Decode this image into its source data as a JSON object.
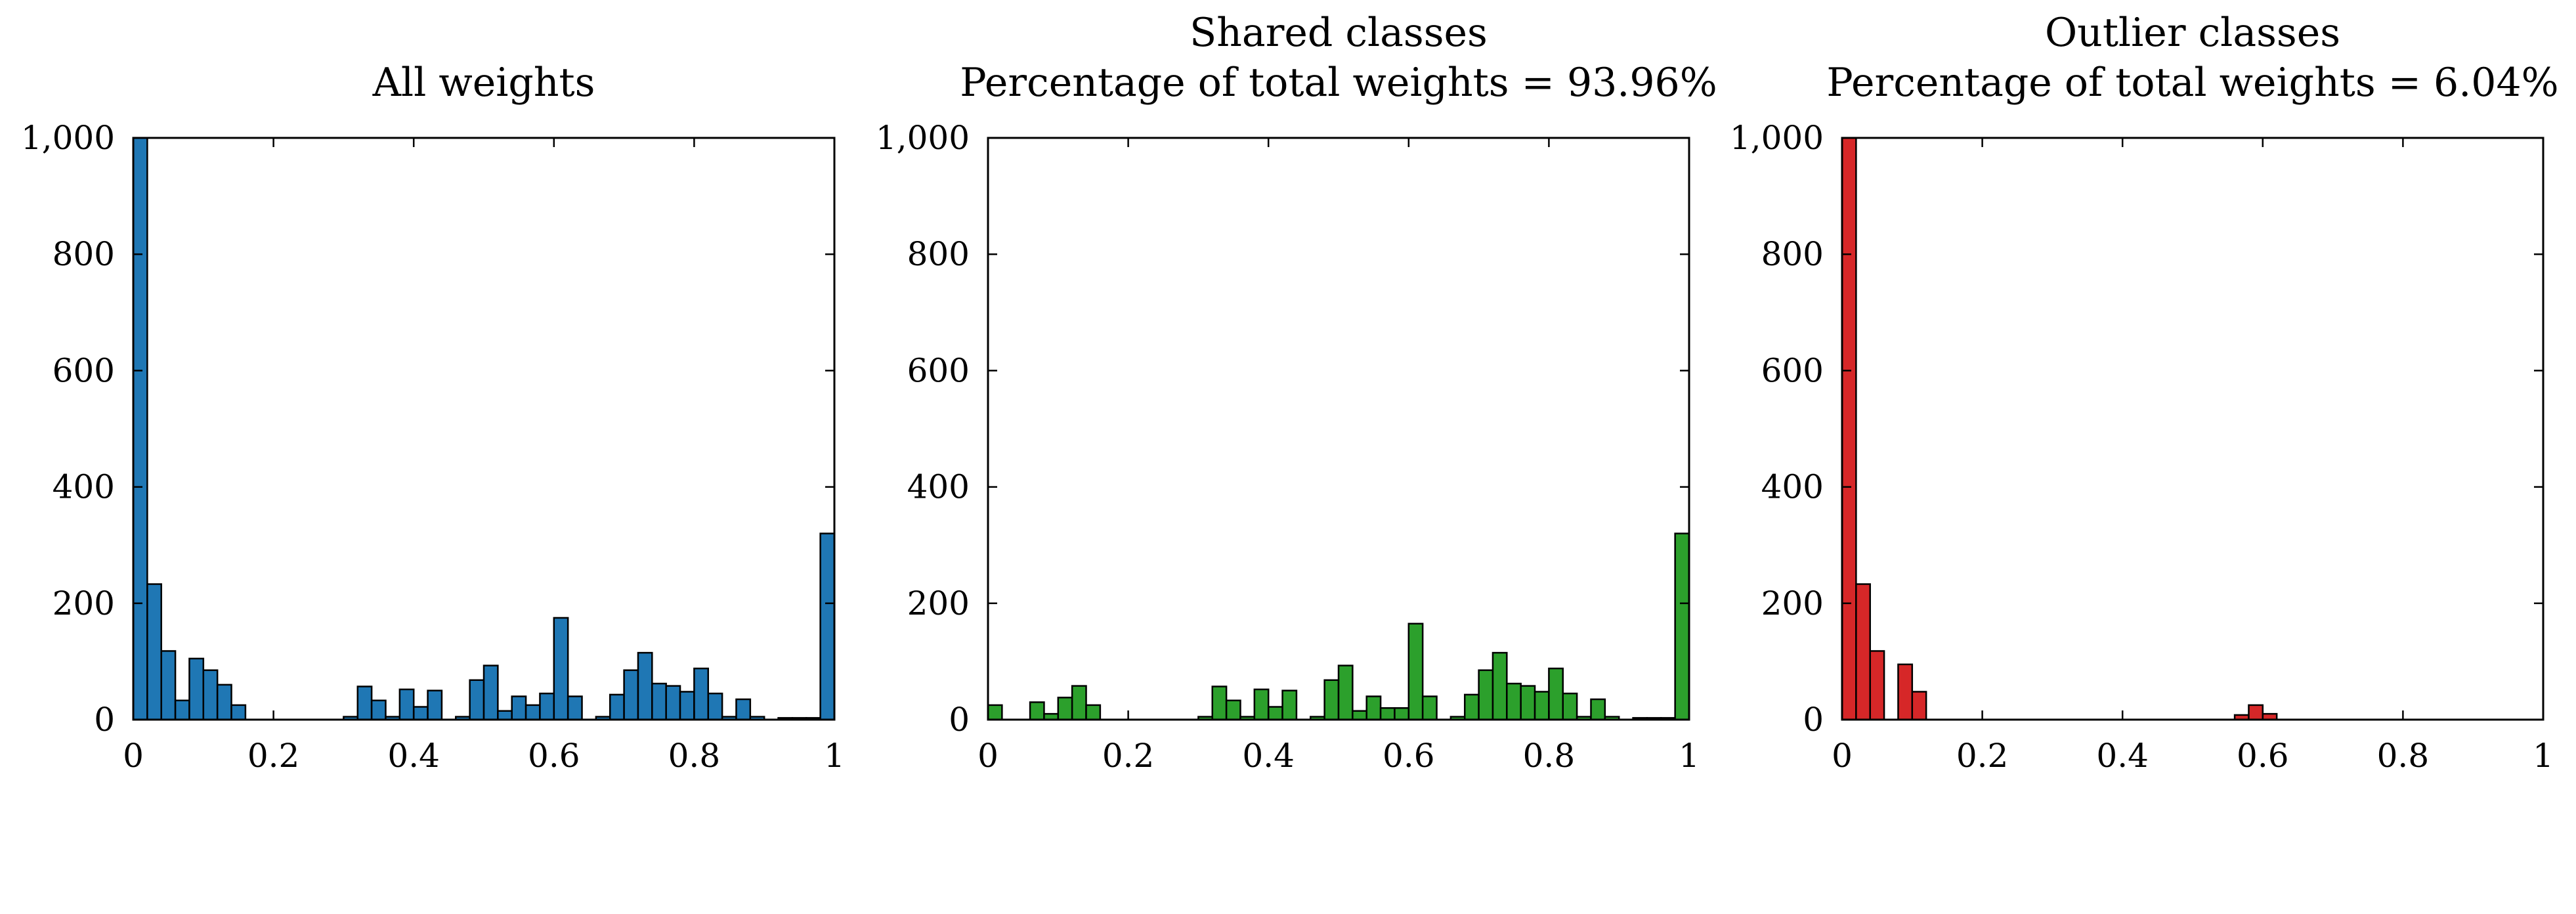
{
  "chart_data": [
    {
      "type": "bar",
      "title_lines": [
        "All weights"
      ],
      "color": "#1f77b4",
      "xlim": [
        0,
        1
      ],
      "ylim": [
        0,
        1000
      ],
      "xticks": [
        0,
        0.2,
        0.4,
        0.6,
        0.8,
        1
      ],
      "xtick_labels": [
        "0",
        "0.2",
        "0.4",
        "0.6",
        "0.8",
        "1"
      ],
      "yticks": [
        0,
        200,
        400,
        600,
        800,
        1000
      ],
      "ytick_labels": [
        "0",
        "200",
        "400",
        "600",
        "800",
        "1,000"
      ],
      "bin_width": 0.02,
      "bin_starts": [
        0,
        0.02,
        0.04,
        0.06,
        0.08,
        0.1,
        0.12,
        0.14,
        0.16,
        0.18,
        0.2,
        0.22,
        0.24,
        0.26,
        0.28,
        0.3,
        0.32,
        0.34,
        0.36,
        0.38,
        0.4,
        0.42,
        0.44,
        0.46,
        0.48,
        0.5,
        0.52,
        0.54,
        0.56,
        0.58,
        0.6,
        0.62,
        0.64,
        0.66,
        0.68,
        0.7,
        0.72,
        0.74,
        0.76,
        0.78,
        0.8,
        0.82,
        0.84,
        0.86,
        0.88,
        0.9,
        0.92,
        0.94,
        0.96,
        0.98
      ],
      "values": [
        1000,
        233,
        118,
        33,
        105,
        85,
        60,
        25,
        0,
        0,
        0,
        0,
        0,
        0,
        0,
        5,
        57,
        33,
        5,
        52,
        22,
        50,
        0,
        5,
        68,
        93,
        15,
        40,
        25,
        45,
        175,
        40,
        0,
        5,
        43,
        85,
        115,
        62,
        58,
        48,
        88,
        45,
        5,
        35,
        5,
        0,
        3,
        3,
        3,
        320
      ]
    },
    {
      "type": "bar",
      "title_lines": [
        "Shared classes",
        "Percentage of total weights = 93.96%"
      ],
      "color": "#2ca02c",
      "xlim": [
        0,
        1
      ],
      "ylim": [
        0,
        1000
      ],
      "xticks": [
        0,
        0.2,
        0.4,
        0.6,
        0.8,
        1
      ],
      "xtick_labels": [
        "0",
        "0.2",
        "0.4",
        "0.6",
        "0.8",
        "1"
      ],
      "yticks": [
        0,
        200,
        400,
        600,
        800,
        1000
      ],
      "ytick_labels": [
        "0",
        "200",
        "400",
        "600",
        "800",
        "1,000"
      ],
      "bin_width": 0.02,
      "bin_starts": [
        0,
        0.02,
        0.04,
        0.06,
        0.08,
        0.1,
        0.12,
        0.14,
        0.16,
        0.18,
        0.2,
        0.22,
        0.24,
        0.26,
        0.28,
        0.3,
        0.32,
        0.34,
        0.36,
        0.38,
        0.4,
        0.42,
        0.44,
        0.46,
        0.48,
        0.5,
        0.52,
        0.54,
        0.56,
        0.58,
        0.6,
        0.62,
        0.64,
        0.66,
        0.68,
        0.7,
        0.72,
        0.74,
        0.76,
        0.78,
        0.8,
        0.82,
        0.84,
        0.86,
        0.88,
        0.9,
        0.92,
        0.94,
        0.96,
        0.98
      ],
      "values": [
        25,
        0,
        0,
        30,
        10,
        38,
        58,
        25,
        0,
        0,
        0,
        0,
        0,
        0,
        0,
        5,
        57,
        33,
        5,
        52,
        22,
        50,
        0,
        5,
        68,
        93,
        15,
        40,
        20,
        20,
        165,
        40,
        0,
        5,
        43,
        85,
        115,
        62,
        58,
        48,
        88,
        45,
        5,
        35,
        5,
        0,
        3,
        3,
        3,
        320
      ]
    },
    {
      "type": "bar",
      "title_lines": [
        "Outlier classes",
        "Percentage of total weights = 6.04%"
      ],
      "color": "#d62728",
      "xlim": [
        0,
        1
      ],
      "ylim": [
        0,
        1000
      ],
      "xticks": [
        0,
        0.2,
        0.4,
        0.6,
        0.8,
        1
      ],
      "xtick_labels": [
        "0",
        "0.2",
        "0.4",
        "0.6",
        "0.8",
        "1"
      ],
      "yticks": [
        0,
        200,
        400,
        600,
        800,
        1000
      ],
      "ytick_labels": [
        "0",
        "200",
        "400",
        "600",
        "800",
        "1,000"
      ],
      "bin_width": 0.02,
      "bin_starts": [
        0,
        0.02,
        0.04,
        0.06,
        0.08,
        0.1,
        0.12,
        0.14,
        0.16,
        0.18,
        0.2,
        0.22,
        0.24,
        0.26,
        0.28,
        0.3,
        0.32,
        0.34,
        0.36,
        0.38,
        0.4,
        0.42,
        0.44,
        0.46,
        0.48,
        0.5,
        0.52,
        0.54,
        0.56,
        0.58,
        0.6,
        0.62,
        0.64,
        0.66,
        0.68,
        0.7,
        0.72,
        0.74,
        0.76,
        0.78,
        0.8,
        0.82,
        0.84,
        0.86,
        0.88,
        0.9,
        0.92,
        0.94,
        0.96,
        0.98
      ],
      "values": [
        1000,
        233,
        118,
        0,
        95,
        48,
        0,
        0,
        0,
        0,
        0,
        0,
        0,
        0,
        0,
        0,
        0,
        0,
        0,
        0,
        0,
        0,
        0,
        0,
        0,
        0,
        0,
        0,
        8,
        25,
        10,
        0,
        0,
        0,
        0,
        0,
        0,
        0,
        0,
        0,
        0,
        0,
        0,
        0,
        0,
        0,
        0,
        0,
        0,
        0
      ]
    }
  ]
}
